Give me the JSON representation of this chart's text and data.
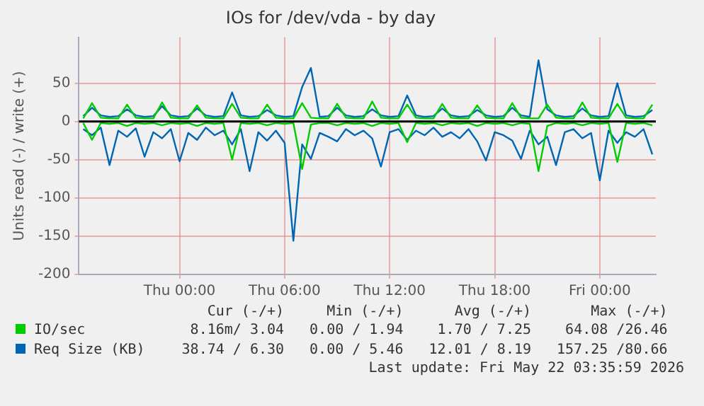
{
  "chart_data": {
    "type": "line",
    "title": "IOs for /dev/vda - by day",
    "ylabel": "Units read (-) / write (+)",
    "x": [
      "2026-05-20T18:30",
      "2026-05-20T19:00",
      "2026-05-20T19:30",
      "2026-05-20T20:00",
      "2026-05-20T20:30",
      "2026-05-20T21:00",
      "2026-05-20T21:30",
      "2026-05-20T22:00",
      "2026-05-20T22:30",
      "2026-05-20T23:00",
      "2026-05-20T23:30",
      "2026-05-21T00:00",
      "2026-05-21T00:30",
      "2026-05-21T01:00",
      "2026-05-21T01:30",
      "2026-05-21T02:00",
      "2026-05-21T02:30",
      "2026-05-21T03:00",
      "2026-05-21T03:30",
      "2026-05-21T04:00",
      "2026-05-21T04:30",
      "2026-05-21T05:00",
      "2026-05-21T05:30",
      "2026-05-21T06:00",
      "2026-05-21T06:30",
      "2026-05-21T07:00",
      "2026-05-21T07:30",
      "2026-05-21T08:00",
      "2026-05-21T08:30",
      "2026-05-21T09:00",
      "2026-05-21T09:30",
      "2026-05-21T10:00",
      "2026-05-21T10:30",
      "2026-05-21T11:00",
      "2026-05-21T11:30",
      "2026-05-21T12:00",
      "2026-05-21T12:30",
      "2026-05-21T13:00",
      "2026-05-21T13:30",
      "2026-05-21T14:00",
      "2026-05-21T14:30",
      "2026-05-21T15:00",
      "2026-05-21T15:30",
      "2026-05-21T16:00",
      "2026-05-21T16:30",
      "2026-05-21T17:00",
      "2026-05-21T17:30",
      "2026-05-21T18:00",
      "2026-05-21T18:30",
      "2026-05-21T19:00",
      "2026-05-21T19:30",
      "2026-05-21T20:00",
      "2026-05-21T20:30",
      "2026-05-21T21:00",
      "2026-05-21T21:30",
      "2026-05-21T22:00",
      "2026-05-21T22:30",
      "2026-05-21T23:00",
      "2026-05-21T23:30",
      "2026-05-22T00:00",
      "2026-05-22T00:30",
      "2026-05-22T01:00",
      "2026-05-22T01:30",
      "2026-05-22T02:00",
      "2026-05-22T02:30",
      "2026-05-22T03:00"
    ],
    "series": [
      {
        "name": "IO/sec",
        "color": "#00cc00",
        "values": [
          4,
          24,
          5,
          4,
          4,
          22,
          5,
          4,
          4,
          25,
          5,
          4,
          4,
          21,
          5,
          4,
          4,
          23,
          5,
          4,
          4,
          22,
          5,
          4,
          4,
          24,
          5,
          4,
          4,
          23,
          5,
          4,
          4,
          26,
          5,
          4,
          4,
          22,
          5,
          4,
          4,
          23,
          5,
          4,
          4,
          21,
          5,
          4,
          4,
          24,
          5,
          4,
          4,
          22,
          5,
          4,
          4,
          25,
          5,
          4,
          4,
          23,
          5,
          4,
          4,
          22
        ]
      },
      {
        "color": "#00cc00",
        "values": [
          -2,
          -24,
          -2,
          -3,
          -2,
          -6,
          -2,
          -3,
          -2,
          -5,
          -2,
          -3,
          -2,
          -6,
          -2,
          -3,
          -2,
          -50,
          -2,
          -3,
          -2,
          -5,
          -2,
          -3,
          -2,
          -62,
          -4,
          -2,
          -2,
          -5,
          -2,
          -3,
          -2,
          -6,
          -2,
          -3,
          -2,
          -27,
          -2,
          -3,
          -2,
          -5,
          -2,
          -3,
          -2,
          -6,
          -2,
          -3,
          -2,
          -5,
          -2,
          -3,
          -65,
          -6,
          -2,
          -3,
          -2,
          -5,
          -2,
          -3,
          -2,
          -53,
          -2,
          -3,
          -2,
          -5
        ]
      },
      {
        "name": "Req Size (KB)",
        "color": "#0066b3",
        "values": [
          7,
          18,
          8,
          6,
          7,
          16,
          8,
          6,
          7,
          20,
          8,
          6,
          7,
          17,
          8,
          6,
          7,
          38,
          8,
          6,
          7,
          15,
          8,
          6,
          7,
          45,
          70,
          6,
          7,
          18,
          8,
          6,
          7,
          16,
          8,
          6,
          7,
          34,
          8,
          6,
          7,
          17,
          8,
          6,
          7,
          15,
          8,
          6,
          7,
          18,
          8,
          6,
          80,
          16,
          8,
          6,
          7,
          17,
          8,
          6,
          7,
          50,
          8,
          6,
          7,
          15
        ]
      },
      {
        "color": "#0066b3",
        "values": [
          -10,
          -18,
          -8,
          -57,
          -12,
          -20,
          -9,
          -46,
          -14,
          -22,
          -10,
          -52,
          -15,
          -24,
          -8,
          -18,
          -12,
          -30,
          -10,
          -65,
          -14,
          -25,
          -12,
          -28,
          -156,
          -30,
          -49,
          -15,
          -20,
          -26,
          -10,
          -18,
          -12,
          -22,
          -59,
          -14,
          -10,
          -24,
          -12,
          -18,
          -8,
          -20,
          -14,
          -22,
          -10,
          -26,
          -51,
          -14,
          -18,
          -25,
          -49,
          -12,
          -30,
          -20,
          -57,
          -14,
          -10,
          -22,
          -15,
          -77,
          -12,
          -28,
          -14,
          -20,
          -10,
          -43
        ]
      }
    ],
    "xlim": [
      "2026-05-20T18:15",
      "2026-05-22T03:12"
    ],
    "xticks": [
      {
        "value": "2026-05-21T00:00",
        "label": "Thu 00:00"
      },
      {
        "value": "2026-05-21T06:00",
        "label": "Thu 06:00"
      },
      {
        "value": "2026-05-21T12:00",
        "label": "Thu 12:00"
      },
      {
        "value": "2026-05-21T18:00",
        "label": "Thu 18:00"
      },
      {
        "value": "2026-05-22T00:00",
        "label": "Fri 00:00"
      }
    ],
    "ylim": [
      -200,
      110
    ],
    "yticks": [
      -200,
      -150,
      -100,
      -50,
      0,
      50
    ],
    "grid": true,
    "legend": "bottom",
    "ref_lines": [
      {
        "axis": "y",
        "value": 0,
        "color": "#000000"
      }
    ],
    "annotations": [
      "Cur (-/+)",
      "Min (-/+)",
      "Avg (-/+)",
      "Max (-/+)",
      "8.16m/ 3.04",
      "0.00 / 1.94",
      "1.70 / 7.25",
      "64.08 /26.46",
      "38.74 / 6.30",
      "0.00 / 5.46",
      "12.01 / 8.19",
      "157.25 /80.66",
      "Last update: Fri May 22 03:35:59 2026"
    ]
  }
}
